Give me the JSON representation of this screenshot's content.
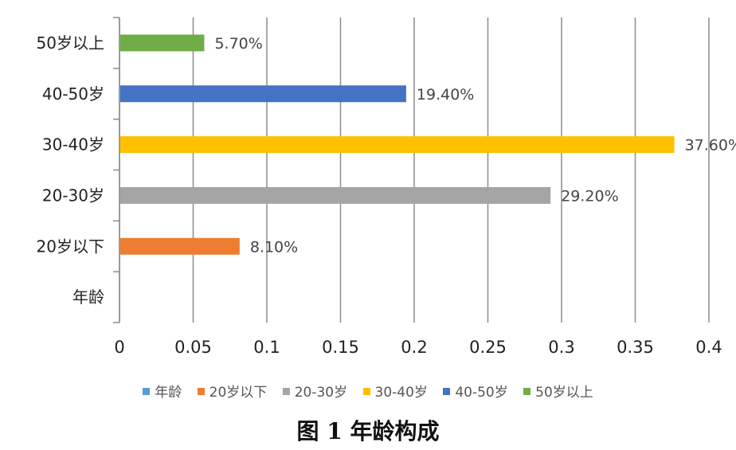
{
  "chart_data": {
    "type": "bar",
    "orientation": "horizontal",
    "categories": [
      "年龄",
      "20岁以下",
      "20-30岁",
      "30-40岁",
      "40-50岁",
      "50岁以上"
    ],
    "values": [
      null,
      0.081,
      0.292,
      0.376,
      0.194,
      0.057
    ],
    "data_labels": [
      "",
      "8.10%",
      "29.20%",
      "37.60%",
      "19.40%",
      "5.70%"
    ],
    "colors": [
      "#5b9bd5",
      "#ed7d31",
      "#a5a5a5",
      "#ffc000",
      "#4472c4",
      "#70ad47"
    ],
    "xlim": [
      0,
      0.4
    ],
    "x_ticks": [
      "0",
      "0.05",
      "0.1",
      "0.15",
      "0.2",
      "0.25",
      "0.3",
      "0.35",
      "0.4"
    ],
    "grid": "vertical",
    "legend_position": "bottom",
    "legend": [
      "年龄",
      "20岁以下",
      "20-30岁",
      "30-40岁",
      "40-50岁",
      "50岁以上"
    ]
  },
  "caption": "图 1  年龄构成"
}
